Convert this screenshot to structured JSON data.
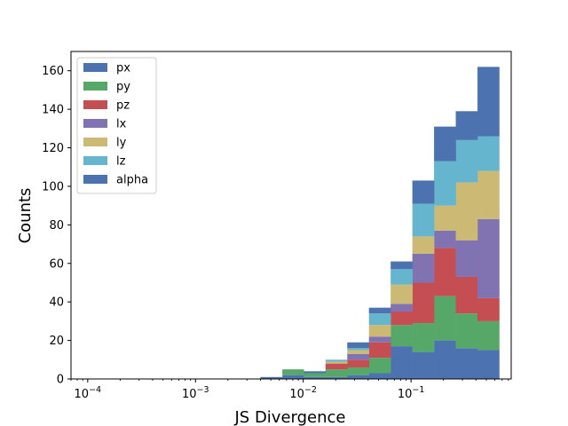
{
  "chart_data": {
    "type": "bar",
    "subtype": "stacked-histogram",
    "title": "",
    "xlabel": "JS Divergence",
    "ylabel": "Counts",
    "xscale": "log",
    "xlim": [
      7e-05,
      0.85
    ],
    "ylim": [
      0,
      170
    ],
    "grid": false,
    "legend_position": "upper-left",
    "x_tick_labels": [
      "10^-4",
      "10^-3",
      "10^-2",
      "10^-1"
    ],
    "y_tick_labels": [
      "0",
      "20",
      "40",
      "60",
      "80",
      "100",
      "120",
      "140",
      "160"
    ],
    "bin_edges": [
      0.004,
      0.0064,
      0.0101,
      0.0161,
      0.0256,
      0.0407,
      0.0647,
      0.1029,
      0.1636,
      0.2601,
      0.4136,
      0.6577
    ],
    "series": [
      {
        "name": "px",
        "color": "#4c72b0",
        "values": [
          0,
          2,
          1,
          1,
          2,
          3,
          17,
          14,
          20,
          16,
          15
        ]
      },
      {
        "name": "py",
        "color": "#55a868",
        "values": [
          0,
          3,
          2,
          4,
          4,
          8,
          11,
          15,
          23,
          18,
          15
        ]
      },
      {
        "name": "pz",
        "color": "#c44e52",
        "values": [
          0,
          0,
          0,
          3,
          4,
          8,
          7,
          21,
          25,
          19,
          12
        ]
      },
      {
        "name": "lx",
        "color": "#8172b2",
        "values": [
          0,
          0,
          0,
          0,
          3,
          3,
          4,
          15,
          9,
          19,
          41
        ]
      },
      {
        "name": "ly",
        "color": "#ccb974",
        "values": [
          0,
          0,
          0,
          1,
          2,
          6,
          10,
          9,
          13,
          30,
          25
        ]
      },
      {
        "name": "lz",
        "color": "#64b5cd",
        "values": [
          0,
          0,
          0,
          1,
          1,
          6,
          8,
          17,
          23,
          22,
          18
        ]
      },
      {
        "name": "alpha",
        "color": "#4c72b0",
        "values": [
          1,
          0,
          1,
          0,
          3,
          3,
          4,
          12,
          18,
          15,
          36
        ]
      }
    ]
  }
}
